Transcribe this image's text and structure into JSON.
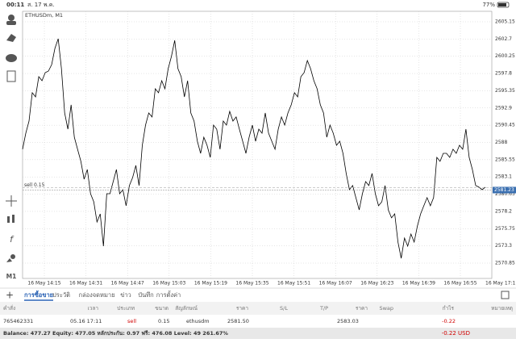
{
  "status_bar": {
    "time": "00:11",
    "date": "ส. 17 พ.ค.",
    "battery": "77%"
  },
  "toolbar": {
    "timeframe": "M1"
  },
  "chart": {
    "type": "line",
    "symbol": "ETHUSDm, M1",
    "color": "#000000",
    "ylim": [
      2568.67,
      2606.64
    ],
    "yticks": [
      2605.15,
      2602.7,
      2600.25,
      2597.8,
      2595.35,
      2592.9,
      2590.45,
      2588.0,
      2585.55,
      2583.1,
      2580.65,
      2578.2,
      2575.75,
      2573.3,
      2570.85
    ],
    "xticks": [
      "16 May 14:15",
      "16 May 14:31",
      "16 May 14:47",
      "16 May 15:03",
      "16 May 15:19",
      "16 May 15:35",
      "16 May 15:51",
      "16 May 16:07",
      "16 May 16:23",
      "16 May 16:39",
      "16 May 16:55",
      "16 May 17:11"
    ],
    "current_price": 2581.23,
    "order_label": "sell 0.15",
    "values": [
      2587.03,
      2589.32,
      2591.04,
      2595.06,
      2594.48,
      2597.35,
      2596.78,
      2597.92,
      2598.15,
      2599.07,
      2601.36,
      2602.74,
      2598.5,
      2592.19,
      2589.89,
      2593.34,
      2588.75,
      2587.03,
      2585.31,
      2582.78,
      2584.16,
      2580.72,
      2579.57,
      2576.7,
      2577.85,
      2573.26,
      2580.72,
      2580.72,
      2582.44,
      2584.16,
      2580.72,
      2581.29,
      2579.0,
      2581.87,
      2583.01,
      2584.73,
      2581.87,
      2587.6,
      2590.47,
      2592.19,
      2591.62,
      2595.63,
      2595.06,
      2596.78,
      2595.63,
      2598.5,
      2600.22,
      2602.51,
      2598.5,
      2597.35,
      2594.48,
      2596.78,
      2592.19,
      2591.04,
      2588.17,
      2586.45,
      2588.75,
      2587.6,
      2585.88,
      2590.47,
      2589.89,
      2587.03,
      2591.04,
      2590.47,
      2592.42,
      2591.04,
      2591.62,
      2589.89,
      2588.17,
      2586.45,
      2588.75,
      2590.47,
      2588.17,
      2589.89,
      2589.32,
      2592.19,
      2589.32,
      2588.17,
      2587.03,
      2589.89,
      2591.62,
      2590.47,
      2592.19,
      2593.34,
      2595.06,
      2594.48,
      2597.35,
      2597.92,
      2599.64,
      2598.5,
      2596.78,
      2595.63,
      2593.34,
      2592.19,
      2588.75,
      2590.47,
      2589.32,
      2587.6,
      2588.17,
      2586.45,
      2583.59,
      2581.29,
      2581.87,
      2580.15,
      2578.42,
      2580.72,
      2582.44,
      2581.87,
      2583.59,
      2580.72,
      2579.0,
      2579.57,
      2581.87,
      2578.42,
      2577.28,
      2577.85,
      2573.84,
      2571.54,
      2574.41,
      2573.26,
      2574.98,
      2573.84,
      2576.13,
      2577.85,
      2579.0,
      2580.15,
      2579.0,
      2580.15,
      2585.88,
      2585.31,
      2586.45,
      2586.45,
      2585.88,
      2587.03,
      2586.45,
      2587.6,
      2587.03,
      2589.89,
      2585.88,
      2584.16,
      2581.87,
      2581.64,
      2581.29,
      2581.64
    ]
  },
  "tabs": [
    "การซื้อขาย",
    "ประวัติ",
    "กล่องจดหมาย",
    "ข่าว",
    "บันทึก",
    "การตั้งค่า"
  ],
  "table": {
    "headers": [
      "คำสั่ง",
      "เวลา",
      "ประเภท",
      "ขนาด",
      "สัญลักษณ์",
      "ราคา",
      "S/L",
      "T/P",
      "ราคา",
      "Swap",
      "กำไร",
      "หมายเหตุ"
    ],
    "row": {
      "order": "765462331",
      "time": "05.16 17:11",
      "type": "sell",
      "size": "0.15",
      "symbol": "ethusdm",
      "open_price": "2581.50",
      "price": "2583.03",
      "profit": "-0.22"
    }
  },
  "footer": {
    "summary": "Balance: 477.27 Equity: 477.05 หลักประกัน: 0.97 ฟรี: 476.08 Level: 49 261.67%",
    "profit": "-0.22 USD"
  }
}
